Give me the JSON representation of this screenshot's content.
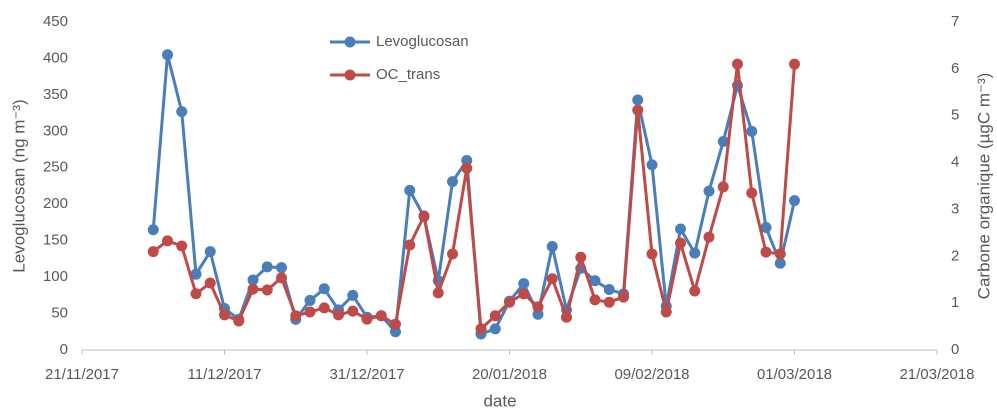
{
  "chart_data": {
    "type": "line",
    "x_label": "date",
    "y_label": "Levoglucosan (ng m⁻³)",
    "y2_label": "Carbone organique (µgC m⁻³)",
    "x": [
      "2017-12-01",
      "2017-12-03",
      "2017-12-05",
      "2017-12-07",
      "2017-12-09",
      "2017-12-11",
      "2017-12-13",
      "2017-12-15",
      "2017-12-17",
      "2017-12-19",
      "2017-12-21",
      "2017-12-23",
      "2017-12-25",
      "2017-12-27",
      "2017-12-29",
      "2017-12-31",
      "2018-01-02",
      "2018-01-04",
      "2018-01-06",
      "2018-01-08",
      "2018-01-10",
      "2018-01-12",
      "2018-01-14",
      "2018-01-16",
      "2018-01-18",
      "2018-01-20",
      "2018-01-22",
      "2018-01-24",
      "2018-01-26",
      "2018-01-28",
      "2018-01-30",
      "2018-02-01",
      "2018-02-03",
      "2018-02-05",
      "2018-02-07",
      "2018-02-09",
      "2018-02-11",
      "2018-02-13",
      "2018-02-15",
      "2018-02-17",
      "2018-02-19",
      "2018-02-21",
      "2018-02-23",
      "2018-02-25",
      "2018-02-27",
      "2018-03-01"
    ],
    "series": [
      {
        "name": "Levoglucosan",
        "color": "#4a7ebb",
        "axis": "y",
        "values": [
          165,
          405,
          327,
          104,
          135,
          57,
          42,
          96,
          114,
          113,
          42,
          68,
          84,
          55,
          75,
          45,
          47,
          25,
          219,
          183,
          95,
          231,
          260,
          22,
          29,
          67,
          91,
          49,
          142,
          55,
          112,
          95,
          83,
          77,
          343,
          254,
          60,
          166,
          133,
          218,
          286,
          363,
          300,
          168,
          119,
          205
        ]
      },
      {
        "name": "OC_trans",
        "color": "#be4b48",
        "axis": "y2",
        "values": [
          2.1,
          2.33,
          2.22,
          1.2,
          1.43,
          0.75,
          0.62,
          1.3,
          1.28,
          1.54,
          0.73,
          0.81,
          0.9,
          0.75,
          0.83,
          0.66,
          0.73,
          0.55,
          2.24,
          2.86,
          1.22,
          2.05,
          3.88,
          0.45,
          0.73,
          1.02,
          1.2,
          0.92,
          1.52,
          0.7,
          1.98,
          1.07,
          1.02,
          1.13,
          5.12,
          2.05,
          0.81,
          2.28,
          1.26,
          2.41,
          3.48,
          6.1,
          3.35,
          2.09,
          2.05,
          6.1
        ]
      }
    ],
    "xlim": [
      "2017-11-21",
      "2018-03-21"
    ],
    "xticks": [
      {
        "value": "2017-11-21",
        "label": "21/11/2017"
      },
      {
        "value": "2017-12-11",
        "label": "11/12/2017"
      },
      {
        "value": "2017-12-31",
        "label": "31/12/2017"
      },
      {
        "value": "2018-01-20",
        "label": "20/01/2018"
      },
      {
        "value": "2018-02-09",
        "label": "09/02/2018"
      },
      {
        "value": "2018-03-01",
        "label": "01/03/2018"
      },
      {
        "value": "2018-03-21",
        "label": "21/03/2018"
      }
    ],
    "ylim": [
      0,
      450
    ],
    "yticks": [
      0,
      50,
      100,
      150,
      200,
      250,
      300,
      350,
      400,
      450
    ],
    "y2lim": [
      0,
      7
    ],
    "y2ticks": [
      0,
      1,
      2,
      3,
      4,
      5,
      6,
      7
    ],
    "legend": "top"
  }
}
